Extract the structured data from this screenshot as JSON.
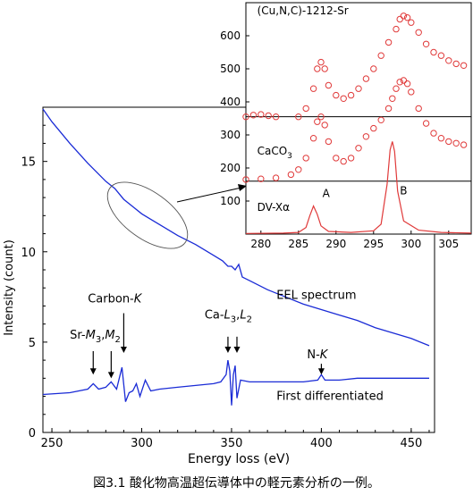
{
  "caption": "図3.1 酸化物高温超伝導体中の軽元素分析の一例。",
  "chart_data": [
    {
      "type": "line",
      "xlabel": "Energy loss (eV)",
      "ylabel": "Intensity (count)",
      "xlim": [
        245,
        463
      ],
      "ylim": [
        0,
        18
      ],
      "x_ticks": [
        250,
        300,
        350,
        400,
        450
      ],
      "y_ticks": [
        0,
        5,
        10,
        15
      ],
      "line_color": "#1a2bd6",
      "series": [
        {
          "name": "EEL spectrum",
          "x": [
            245,
            250,
            260,
            270,
            280,
            285,
            290,
            295,
            300,
            305,
            310,
            320,
            330,
            340,
            345,
            348,
            350,
            352,
            354,
            356,
            360,
            370,
            380,
            390,
            400,
            410,
            420,
            430,
            440,
            450,
            460
          ],
          "y": [
            17.9,
            17.2,
            16.0,
            14.9,
            13.9,
            13.5,
            12.9,
            12.5,
            12.1,
            11.8,
            11.5,
            10.9,
            10.4,
            9.8,
            9.5,
            9.2,
            9.2,
            9.0,
            9.3,
            8.6,
            8.4,
            7.9,
            7.5,
            7.1,
            6.8,
            6.5,
            6.2,
            5.8,
            5.5,
            5.2,
            4.8
          ]
        },
        {
          "name": "First differentiated",
          "x": [
            245,
            260,
            270,
            273,
            276,
            280,
            283,
            286,
            289,
            291,
            293,
            295,
            297,
            299,
            302,
            305,
            310,
            320,
            330,
            340,
            344,
            347,
            348,
            349,
            350,
            351,
            352,
            353,
            355,
            360,
            370,
            380,
            390,
            398,
            400,
            402,
            410,
            420,
            430,
            440,
            450,
            460
          ],
          "y": [
            2.1,
            2.2,
            2.4,
            2.7,
            2.4,
            2.5,
            2.8,
            2.4,
            3.6,
            1.7,
            2.2,
            2.3,
            2.7,
            2.0,
            2.9,
            2.3,
            2.4,
            2.5,
            2.6,
            2.7,
            2.8,
            3.2,
            4.0,
            3.4,
            1.5,
            3.2,
            3.7,
            1.9,
            2.9,
            2.8,
            2.8,
            2.8,
            2.8,
            2.9,
            3.2,
            2.9,
            2.9,
            3.0,
            3.0,
            3.0,
            3.0,
            3.0
          ]
        }
      ],
      "annotations": [
        {
          "text": "EEL spectrum",
          "x": 375,
          "y": 7.4
        },
        {
          "text": "First differentiated",
          "x": 375,
          "y": 1.8
        },
        {
          "prefix": "Sr-",
          "m1": "M",
          "s1": "3",
          "sep": ",",
          "m2": "M",
          "s2": "2",
          "x": 260,
          "y": 5.2
        },
        {
          "prefix": "Carbon-",
          "italic": "K",
          "x": 270,
          "y": 7.2
        },
        {
          "prefix": "Ca-",
          "m1": "L",
          "s1": "3",
          "sep": ",",
          "m2": "L",
          "s2": "2",
          "x": 335,
          "y": 6.3
        },
        {
          "prefix": "N-",
          "italic": "K",
          "x": 392,
          "y": 4.1
        }
      ],
      "arrows": [
        {
          "x": 273,
          "y_from": 4.5,
          "y_to": 3.2
        },
        {
          "x": 283,
          "y_from": 4.5,
          "y_to": 3.0
        },
        {
          "x": 290,
          "y_from": 6.6,
          "y_to": 4.4
        },
        {
          "x": 348,
          "y_from": 5.3,
          "y_to": 4.4
        },
        {
          "x": 353,
          "y_from": 5.3,
          "y_to": 4.4
        },
        {
          "x": 400,
          "y_from": 3.8,
          "y_to": 3.2
        }
      ]
    },
    {
      "type": "scatter",
      "xlim": [
        278,
        308
      ],
      "ylim": [
        0,
        700
      ],
      "x_ticks": [
        280,
        285,
        290,
        295,
        300,
        305
      ],
      "y_ticks": [
        100,
        200,
        300,
        400,
        500,
        600
      ],
      "marker_color": "#e03a3a",
      "series": [
        {
          "name": "(Cu,N,C)-1212-Sr",
          "x": [
            278,
            279,
            280,
            281,
            282,
            285,
            286,
            287,
            287.5,
            288,
            288.5,
            289,
            290,
            291,
            292,
            293,
            294,
            295,
            296,
            297,
            298,
            298.5,
            299,
            299.5,
            300,
            301,
            302,
            303,
            304,
            305,
            306,
            307
          ],
          "y": [
            355,
            360,
            362,
            358,
            355,
            355,
            380,
            440,
            500,
            520,
            500,
            450,
            420,
            410,
            420,
            440,
            470,
            500,
            540,
            580,
            620,
            650,
            660,
            655,
            640,
            610,
            575,
            550,
            540,
            525,
            515,
            510
          ]
        },
        {
          "name": "CaCO3",
          "x": [
            278,
            280,
            282,
            284,
            285,
            286,
            287,
            287.5,
            288,
            288.5,
            289,
            290,
            291,
            292,
            293,
            294,
            295,
            296,
            297,
            297.5,
            298,
            298.5,
            299,
            299.5,
            300,
            301,
            302,
            303,
            304,
            305,
            306,
            307
          ],
          "y": [
            165,
            167,
            170,
            180,
            195,
            230,
            290,
            340,
            355,
            330,
            280,
            230,
            220,
            230,
            260,
            295,
            320,
            345,
            380,
            410,
            440,
            460,
            465,
            455,
            430,
            380,
            335,
            305,
            290,
            280,
            275,
            270
          ]
        },
        {
          "name": "DV-Xα",
          "type": "line",
          "x": [
            278,
            283,
            285,
            286,
            286.5,
            287,
            287.5,
            288,
            289,
            292,
            295,
            296,
            296.8,
            297.2,
            297.5,
            297.8,
            298.2,
            299,
            301,
            304,
            308
          ],
          "y": [
            2,
            3,
            5,
            20,
            55,
            85,
            60,
            25,
            8,
            5,
            10,
            30,
            150,
            255,
            280,
            250,
            130,
            40,
            12,
            5,
            3
          ],
          "peaks": [
            {
              "label": "A",
              "x": 287,
              "y": 85
            },
            {
              "label": "B",
              "x": 297.5,
              "y": 280
            }
          ]
        }
      ],
      "separators": [
        355,
        160
      ],
      "labels": [
        {
          "text": "(Cu,N,C)-1212-Sr",
          "x": 279.5,
          "y": 665
        },
        {
          "main": "CaCO",
          "sub": "3",
          "x": 279.5,
          "y": 240
        },
        {
          "text": "DV-Xα",
          "x": 279.5,
          "y": 70
        },
        {
          "text": "A",
          "x": 288.2,
          "y": 112
        },
        {
          "text": "B",
          "x": 298.5,
          "y": 120
        }
      ]
    }
  ]
}
